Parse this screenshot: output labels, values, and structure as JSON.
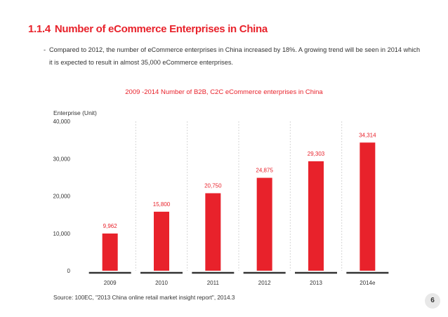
{
  "heading": {
    "number": "1.1.4",
    "title": "Number of eCommerce Enterprises in China"
  },
  "bullet": {
    "dash": "-",
    "text": "Compared to 2012, the number of eCommerce enterprises in China increased by 18%.  A growing trend will be seen in 2014 which it is expected to result in almost 35,000 eCommerce enterprises."
  },
  "chart_data": {
    "type": "bar",
    "title": "2009 -2014 Number of B2B, C2C eCommerce enterprises in China",
    "ylabel": "Enterprise (Unit)",
    "categories": [
      "2009",
      "2010",
      "2011",
      "2012",
      "2013",
      "2014e"
    ],
    "values": [
      9962,
      15800,
      20750,
      24875,
      29303,
      34314
    ],
    "data_labels": [
      "9,962",
      "15,800",
      "20,750",
      "24,875",
      "29,303",
      "34,314"
    ],
    "yticks": [
      0,
      10000,
      20000,
      30000,
      40000
    ],
    "ytick_labels": [
      "0",
      "10,000",
      "20,000",
      "30,000",
      "40,000"
    ],
    "ylim": [
      0,
      40000
    ],
    "grid": "vertical dashed",
    "bar_color": "#e8222b",
    "label_color": "#e8222b"
  },
  "source": "Source: 100EC, \"2013 China online retail market insight report\", 2014.3",
  "page_number": "6",
  "colors": {
    "accent": "#e8222b",
    "text": "#333333",
    "grid": "#d6d6d6"
  }
}
